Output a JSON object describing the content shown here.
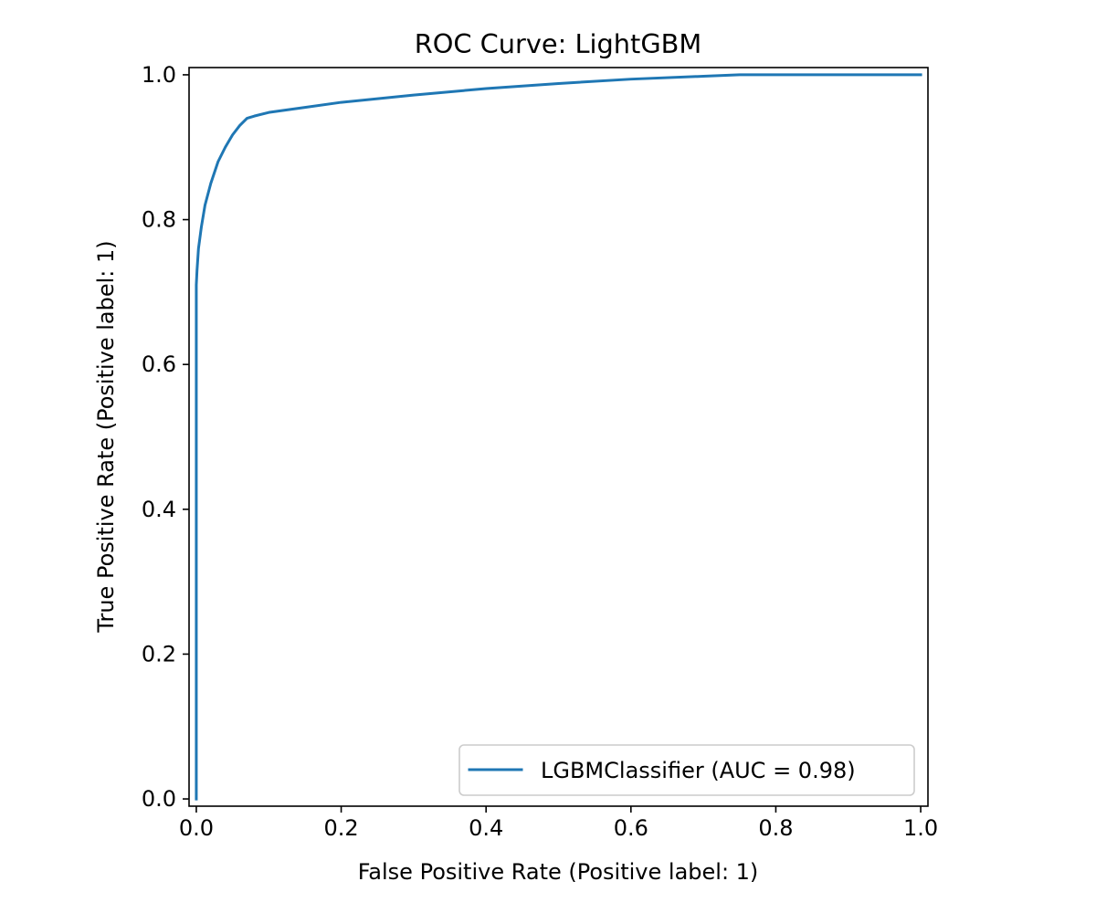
{
  "chart_data": {
    "type": "line",
    "title": "ROC Curve: LightGBM",
    "xlabel": "False Positive Rate (Positive label: 1)",
    "ylabel": "True Positive Rate (Positive label: 1)",
    "xlim": [
      -0.01,
      1.01
    ],
    "ylim": [
      -0.01,
      1.01
    ],
    "xticks": [
      0.0,
      0.2,
      0.4,
      0.6,
      0.8,
      1.0
    ],
    "xtick_labels": [
      "0.0",
      "0.2",
      "0.4",
      "0.6",
      "0.8",
      "1.0"
    ],
    "yticks": [
      0.0,
      0.2,
      0.4,
      0.6,
      0.8,
      1.0
    ],
    "ytick_labels": [
      "0.0",
      "0.2",
      "0.4",
      "0.6",
      "0.8",
      "1.0"
    ],
    "grid": false,
    "legend_position": "bottom-right",
    "series": [
      {
        "name": "LGBMClassifier (AUC = 0.98)",
        "color": "#1f77b4",
        "x": [
          0.0,
          0.0,
          0.001,
          0.003,
          0.007,
          0.012,
          0.02,
          0.03,
          0.04,
          0.05,
          0.06,
          0.07,
          0.08,
          0.1,
          0.15,
          0.2,
          0.3,
          0.4,
          0.5,
          0.6,
          0.7,
          0.75,
          0.8,
          0.9,
          1.0
        ],
        "y": [
          0.0,
          0.71,
          0.73,
          0.76,
          0.79,
          0.82,
          0.85,
          0.88,
          0.9,
          0.917,
          0.93,
          0.94,
          0.943,
          0.948,
          0.955,
          0.962,
          0.972,
          0.981,
          0.988,
          0.994,
          0.998,
          1.0,
          1.0,
          1.0,
          1.0
        ]
      }
    ]
  }
}
